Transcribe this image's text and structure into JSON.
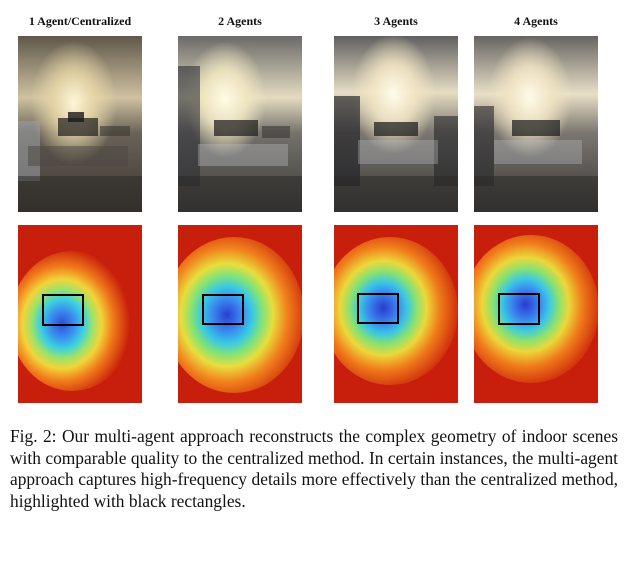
{
  "figure": {
    "columns": [
      {
        "title": "1 Agent/Centralized"
      },
      {
        "title": "2 Agents"
      },
      {
        "title": "3 Agents"
      },
      {
        "title": "4 Agents"
      }
    ]
  },
  "caption": {
    "text": "Fig. 2: Our multi-agent approach reconstructs the complex geometry of indoor scenes with comparable quality to the centralized method. In certain instances, the multi-agent approach captures high-frequency details more effectively than the centralized method, highlighted with black rectangles."
  }
}
